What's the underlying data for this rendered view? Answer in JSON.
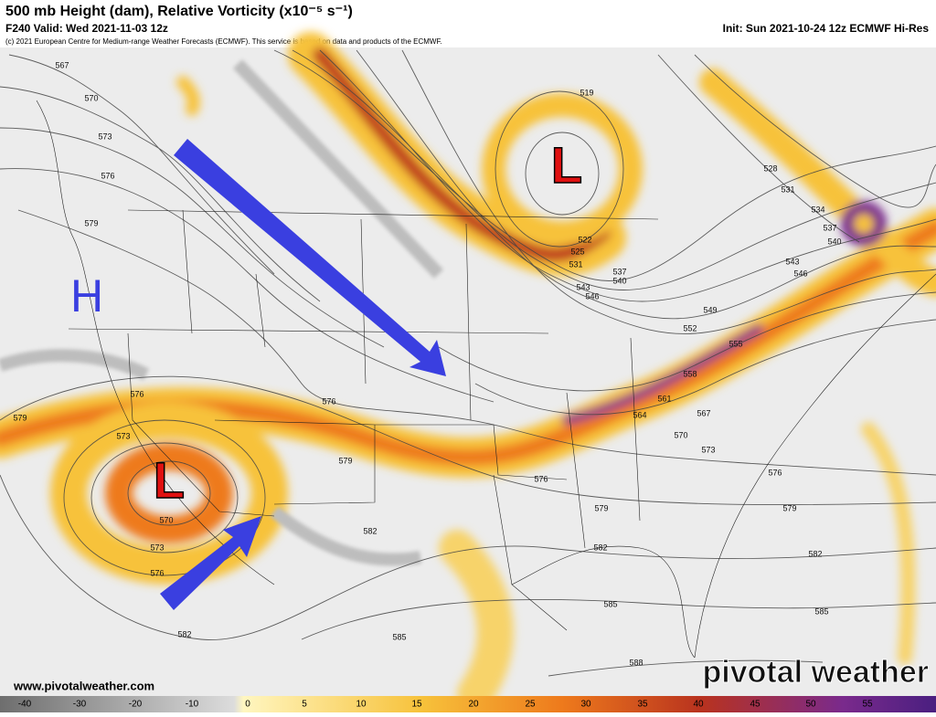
{
  "header": {
    "title": "500 mb Height (dam), Relative Vorticity (x10⁻⁵ s⁻¹)",
    "valid": "F240 Valid: Wed 2021-11-03 12z",
    "init": "Init: Sun 2021-10-24 12z ECMWF Hi-Res",
    "copyright": "(c) 2021 European Centre for Medium-range Weather Forecasts (ECMWF). This service is based on data and products of the ECMWF."
  },
  "map": {
    "annotations": [
      "H",
      "L",
      "L"
    ],
    "contour_labels": [
      "567",
      "570",
      "573",
      "576",
      "579",
      "576",
      "579",
      "573",
      "570",
      "573",
      "576",
      "582",
      "576",
      "579",
      "582",
      "585",
      "588",
      "585",
      "582",
      "579",
      "576",
      "573",
      "570",
      "567",
      "564",
      "561",
      "558",
      "555",
      "552",
      "549",
      "546",
      "543",
      "540",
      "537",
      "531",
      "525",
      "522",
      "519",
      "528",
      "531",
      "534",
      "537",
      "540",
      "543",
      "546",
      "576",
      "579",
      "582",
      "585"
    ]
  },
  "colorbar": {
    "ticks": [
      "-40",
      "-30",
      "-20",
      "-10",
      "0",
      "5",
      "10",
      "15",
      "20",
      "25",
      "30",
      "35",
      "40",
      "45",
      "50",
      "55"
    ]
  },
  "footer": {
    "website": "www.pivotalweather.com",
    "logo": "pivotal weather"
  }
}
